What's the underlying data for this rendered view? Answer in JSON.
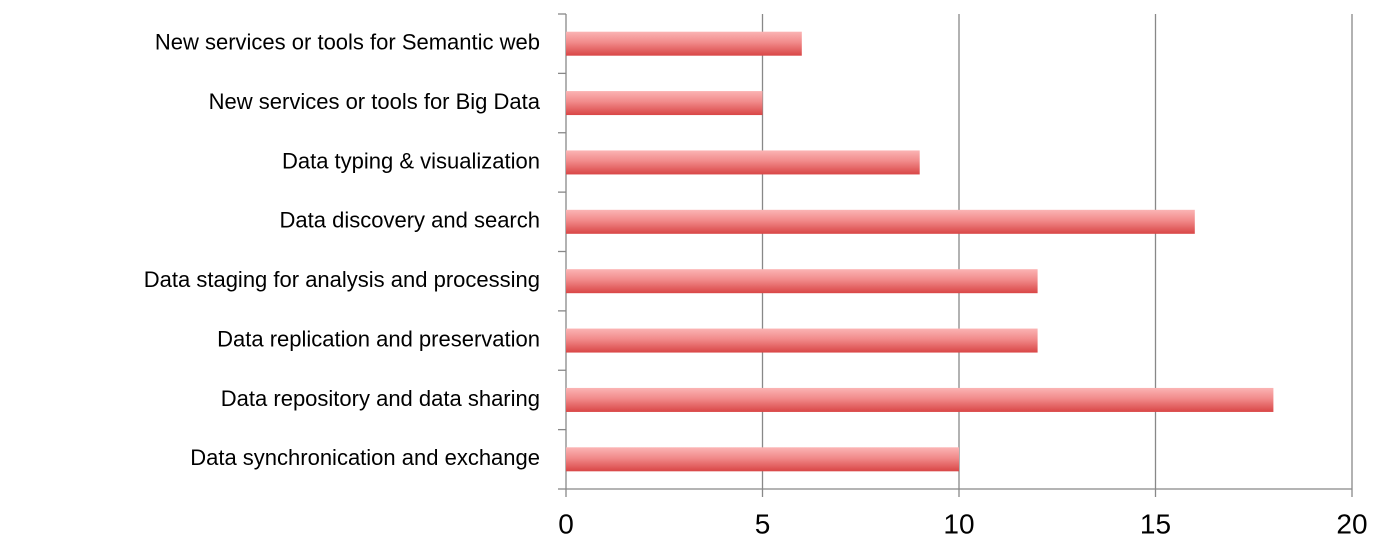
{
  "chart_data": {
    "type": "bar",
    "orientation": "horizontal",
    "categories": [
      "Data synchronication and exchange",
      "Data repository and data sharing",
      "Data replication and preservation",
      "Data staging for analysis and processing",
      "Data discovery and search",
      "Data typing & visualization",
      "New services or tools for Big Data",
      "New services or tools for Semantic web"
    ],
    "values": [
      10,
      18,
      12,
      12,
      16,
      9,
      5,
      6
    ],
    "color": "#d94646",
    "xlim": [
      0,
      20
    ],
    "xticks": [
      0,
      5,
      10,
      15,
      20
    ],
    "grid": true
  }
}
